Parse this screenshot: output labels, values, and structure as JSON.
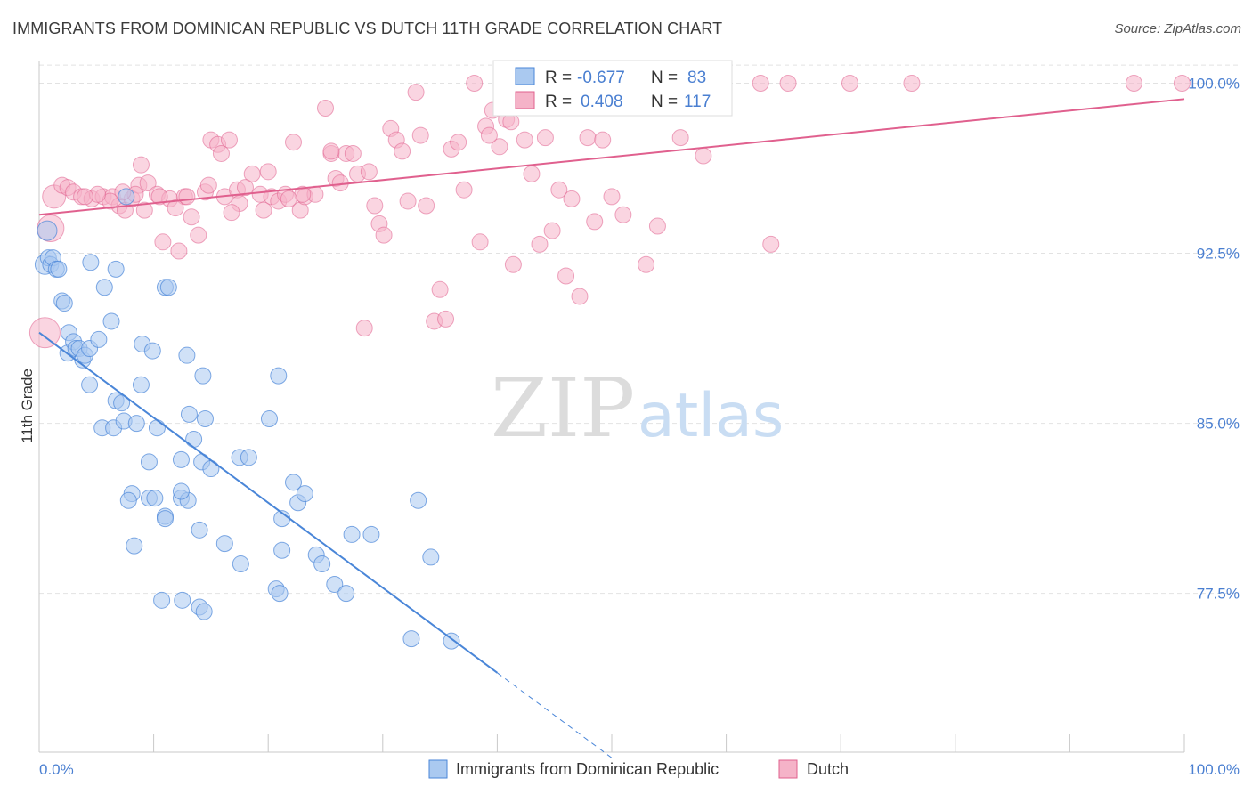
{
  "title": "IMMIGRANTS FROM DOMINICAN REPUBLIC VS DUTCH 11TH GRADE CORRELATION CHART",
  "source": "Source: ZipAtlas.com",
  "watermark": {
    "zip": "ZIP",
    "atlas": "atlas"
  },
  "colors": {
    "blue": "#4a86d8",
    "blue_fill": "#aac9f0",
    "pink": "#e0608e",
    "pink_fill": "#f5b3c8",
    "tick_text": "#4a7fd1",
    "grid": "#e2e2e2"
  },
  "stats": {
    "blue": {
      "r_label": "R =",
      "r_value": "-0.677",
      "n_label": "N =",
      "n_value": "83"
    },
    "pink": {
      "r_label": "R =",
      "r_value": "0.408",
      "n_label": "N =",
      "n_value": "117"
    }
  },
  "chart_data": {
    "type": "scatter",
    "xlabel": "",
    "ylabel": "11th Grade",
    "xlim": [
      0,
      100
    ],
    "ylim": [
      70.5,
      101
    ],
    "x_tick_labels": [
      "0.0%",
      "100.0%"
    ],
    "y_ticks": [
      77.5,
      85.0,
      92.5,
      100.0
    ],
    "y_tick_labels": [
      "77.5%",
      "85.0%",
      "92.5%",
      "100.0%"
    ],
    "grid": true,
    "legend_position": "bottom-center",
    "series": [
      {
        "name": "Immigrants from Dominican Republic",
        "color": "#4a86d8",
        "trend": {
          "x0": 0,
          "y0": 89.0,
          "x1": 40,
          "y1": 74.0,
          "dash_to_x": 50
        },
        "points": [
          [
            0.5,
            92.0
          ],
          [
            0.7,
            93.5
          ],
          [
            0.8,
            92.3
          ],
          [
            1.0,
            92.0
          ],
          [
            1.2,
            92.3
          ],
          [
            1.5,
            91.8
          ],
          [
            1.7,
            91.8
          ],
          [
            2.0,
            90.4
          ],
          [
            2.2,
            90.3
          ],
          [
            2.6,
            89.0
          ],
          [
            2.5,
            88.1
          ],
          [
            3.0,
            88.6
          ],
          [
            3.2,
            88.3
          ],
          [
            3.5,
            88.3
          ],
          [
            3.8,
            87.8
          ],
          [
            4.0,
            88.0
          ],
          [
            4.4,
            88.3
          ],
          [
            5.2,
            88.7
          ],
          [
            4.5,
            92.1
          ],
          [
            5.7,
            91.0
          ],
          [
            6.3,
            89.5
          ],
          [
            6.7,
            91.8
          ],
          [
            7.6,
            95.0
          ],
          [
            4.4,
            86.7
          ],
          [
            6.7,
            86.0
          ],
          [
            7.2,
            85.9
          ],
          [
            5.5,
            84.8
          ],
          [
            6.5,
            84.8
          ],
          [
            7.4,
            85.1
          ],
          [
            8.5,
            85.0
          ],
          [
            8.9,
            86.7
          ],
          [
            9.0,
            88.5
          ],
          [
            9.9,
            88.2
          ],
          [
            10.3,
            84.8
          ],
          [
            11.0,
            91.0
          ],
          [
            11.3,
            91.0
          ],
          [
            12.9,
            88.0
          ],
          [
            13.5,
            84.3
          ],
          [
            13.1,
            85.4
          ],
          [
            12.4,
            83.4
          ],
          [
            9.6,
            83.3
          ],
          [
            8.1,
            81.9
          ],
          [
            7.8,
            81.6
          ],
          [
            9.6,
            81.7
          ],
          [
            10.1,
            81.7
          ],
          [
            12.4,
            81.7
          ],
          [
            13.0,
            81.6
          ],
          [
            12.4,
            82.0
          ],
          [
            11.0,
            80.9
          ],
          [
            14.3,
            87.1
          ],
          [
            14.5,
            85.2
          ],
          [
            14.2,
            83.3
          ],
          [
            15.0,
            83.0
          ],
          [
            17.5,
            83.5
          ],
          [
            18.3,
            83.5
          ],
          [
            20.1,
            85.2
          ],
          [
            20.9,
            87.1
          ],
          [
            11.0,
            80.8
          ],
          [
            14.0,
            80.3
          ],
          [
            16.2,
            79.7
          ],
          [
            8.3,
            79.6
          ],
          [
            17.6,
            78.8
          ],
          [
            21.2,
            79.4
          ],
          [
            21.2,
            80.8
          ],
          [
            22.2,
            82.4
          ],
          [
            22.6,
            81.5
          ],
          [
            23.2,
            81.9
          ],
          [
            24.2,
            79.2
          ],
          [
            24.7,
            78.8
          ],
          [
            20.7,
            77.7
          ],
          [
            21.0,
            77.5
          ],
          [
            25.8,
            77.9
          ],
          [
            26.8,
            77.5
          ],
          [
            10.7,
            77.2
          ],
          [
            12.5,
            77.2
          ],
          [
            14.0,
            76.9
          ],
          [
            14.4,
            76.7
          ],
          [
            27.3,
            80.1
          ],
          [
            29.0,
            80.1
          ],
          [
            33.1,
            81.6
          ],
          [
            34.2,
            79.1
          ],
          [
            32.5,
            75.5
          ],
          [
            36.0,
            75.4
          ]
        ]
      },
      {
        "name": "Dutch",
        "color": "#e0608e",
        "trend": {
          "x0": 0,
          "y0": 94.2,
          "x1": 100,
          "y1": 99.3
        },
        "points": [
          [
            0.5,
            89.0
          ],
          [
            1.0,
            93.6
          ],
          [
            1.3,
            95.0
          ],
          [
            2.0,
            95.5
          ],
          [
            2.5,
            95.4
          ],
          [
            3.0,
            95.2
          ],
          [
            3.7,
            95.0
          ],
          [
            4.6,
            94.9
          ],
          [
            5.6,
            95.0
          ],
          [
            6.4,
            95.0
          ],
          [
            7.0,
            94.6
          ],
          [
            7.5,
            94.4
          ],
          [
            8.1,
            94.9
          ],
          [
            8.7,
            95.5
          ],
          [
            8.9,
            96.4
          ],
          [
            9.5,
            95.6
          ],
          [
            10.3,
            95.1
          ],
          [
            10.8,
            93.0
          ],
          [
            11.4,
            94.9
          ],
          [
            12.2,
            92.6
          ],
          [
            12.7,
            95.0
          ],
          [
            13.3,
            94.1
          ],
          [
            13.9,
            93.3
          ],
          [
            14.5,
            95.2
          ],
          [
            15.0,
            97.5
          ],
          [
            15.6,
            97.3
          ],
          [
            16.2,
            95.0
          ],
          [
            16.6,
            97.5
          ],
          [
            17.3,
            95.3
          ],
          [
            17.5,
            94.7
          ],
          [
            18.6,
            96.0
          ],
          [
            19.3,
            95.1
          ],
          [
            19.6,
            94.4
          ],
          [
            20.3,
            95.0
          ],
          [
            20.9,
            94.8
          ],
          [
            21.5,
            95.1
          ],
          [
            22.2,
            97.4
          ],
          [
            22.8,
            94.4
          ],
          [
            23.2,
            95.0
          ],
          [
            24.1,
            95.1
          ],
          [
            25.0,
            98.9
          ],
          [
            25.5,
            96.9
          ],
          [
            25.9,
            95.8
          ],
          [
            26.3,
            95.6
          ],
          [
            26.8,
            96.9
          ],
          [
            27.4,
            96.9
          ],
          [
            27.8,
            96.0
          ],
          [
            28.4,
            89.2
          ],
          [
            28.8,
            96.1
          ],
          [
            29.3,
            94.6
          ],
          [
            29.7,
            93.8
          ],
          [
            30.1,
            93.3
          ],
          [
            30.7,
            98.0
          ],
          [
            31.2,
            97.5
          ],
          [
            31.7,
            97.0
          ],
          [
            32.2,
            94.8
          ],
          [
            32.9,
            99.6
          ],
          [
            33.3,
            97.7
          ],
          [
            33.8,
            94.6
          ],
          [
            34.5,
            89.5
          ],
          [
            35.0,
            90.9
          ],
          [
            35.5,
            89.6
          ],
          [
            36.0,
            97.1
          ],
          [
            36.6,
            97.4
          ],
          [
            37.1,
            95.3
          ],
          [
            38.0,
            100.0
          ],
          [
            38.5,
            93.0
          ],
          [
            39.0,
            98.1
          ],
          [
            39.6,
            98.8
          ],
          [
            40.2,
            97.2
          ],
          [
            40.8,
            98.4
          ],
          [
            41.4,
            92.0
          ],
          [
            42.0,
            100.0
          ],
          [
            42.4,
            97.5
          ],
          [
            43.0,
            96.0
          ],
          [
            43.7,
            92.9
          ],
          [
            44.2,
            97.6
          ],
          [
            44.8,
            93.5
          ],
          [
            45.4,
            95.3
          ],
          [
            46.0,
            91.5
          ],
          [
            46.5,
            94.9
          ],
          [
            47.2,
            90.6
          ],
          [
            47.9,
            97.6
          ],
          [
            48.5,
            93.9
          ],
          [
            49.2,
            97.5
          ],
          [
            50.0,
            95.0
          ],
          [
            51.0,
            94.2
          ],
          [
            52.1,
            99.2
          ],
          [
            53.0,
            92.0
          ],
          [
            54.0,
            93.7
          ],
          [
            55.0,
            100.0
          ],
          [
            56.0,
            97.6
          ],
          [
            57.1,
            100.0
          ],
          [
            58.0,
            96.8
          ],
          [
            63.0,
            100.0
          ],
          [
            63.9,
            92.9
          ],
          [
            65.4,
            100.0
          ],
          [
            70.8,
            100.0
          ],
          [
            76.2,
            100.0
          ],
          [
            95.6,
            100.0
          ],
          [
            99.8,
            100.0
          ],
          [
            41.2,
            98.3
          ],
          [
            39.3,
            97.7
          ],
          [
            25.5,
            97.0
          ],
          [
            23.0,
            95.1
          ],
          [
            21.8,
            94.9
          ],
          [
            20.0,
            96.1
          ],
          [
            18.0,
            95.4
          ],
          [
            16.8,
            94.3
          ],
          [
            15.9,
            96.9
          ],
          [
            14.8,
            95.5
          ],
          [
            12.9,
            95.0
          ],
          [
            11.9,
            94.5
          ],
          [
            10.5,
            95.0
          ],
          [
            9.2,
            94.4
          ],
          [
            8.4,
            95.1
          ],
          [
            7.3,
            95.2
          ],
          [
            6.2,
            94.8
          ],
          [
            5.1,
            95.1
          ],
          [
            4.0,
            95.0
          ]
        ]
      }
    ]
  },
  "legend": [
    {
      "label": "Immigrants from Dominican Republic",
      "color": "#aac9f0",
      "border": "#4a86d8"
    },
    {
      "label": "Dutch",
      "color": "#f5b3c8",
      "border": "#e0608e"
    }
  ]
}
